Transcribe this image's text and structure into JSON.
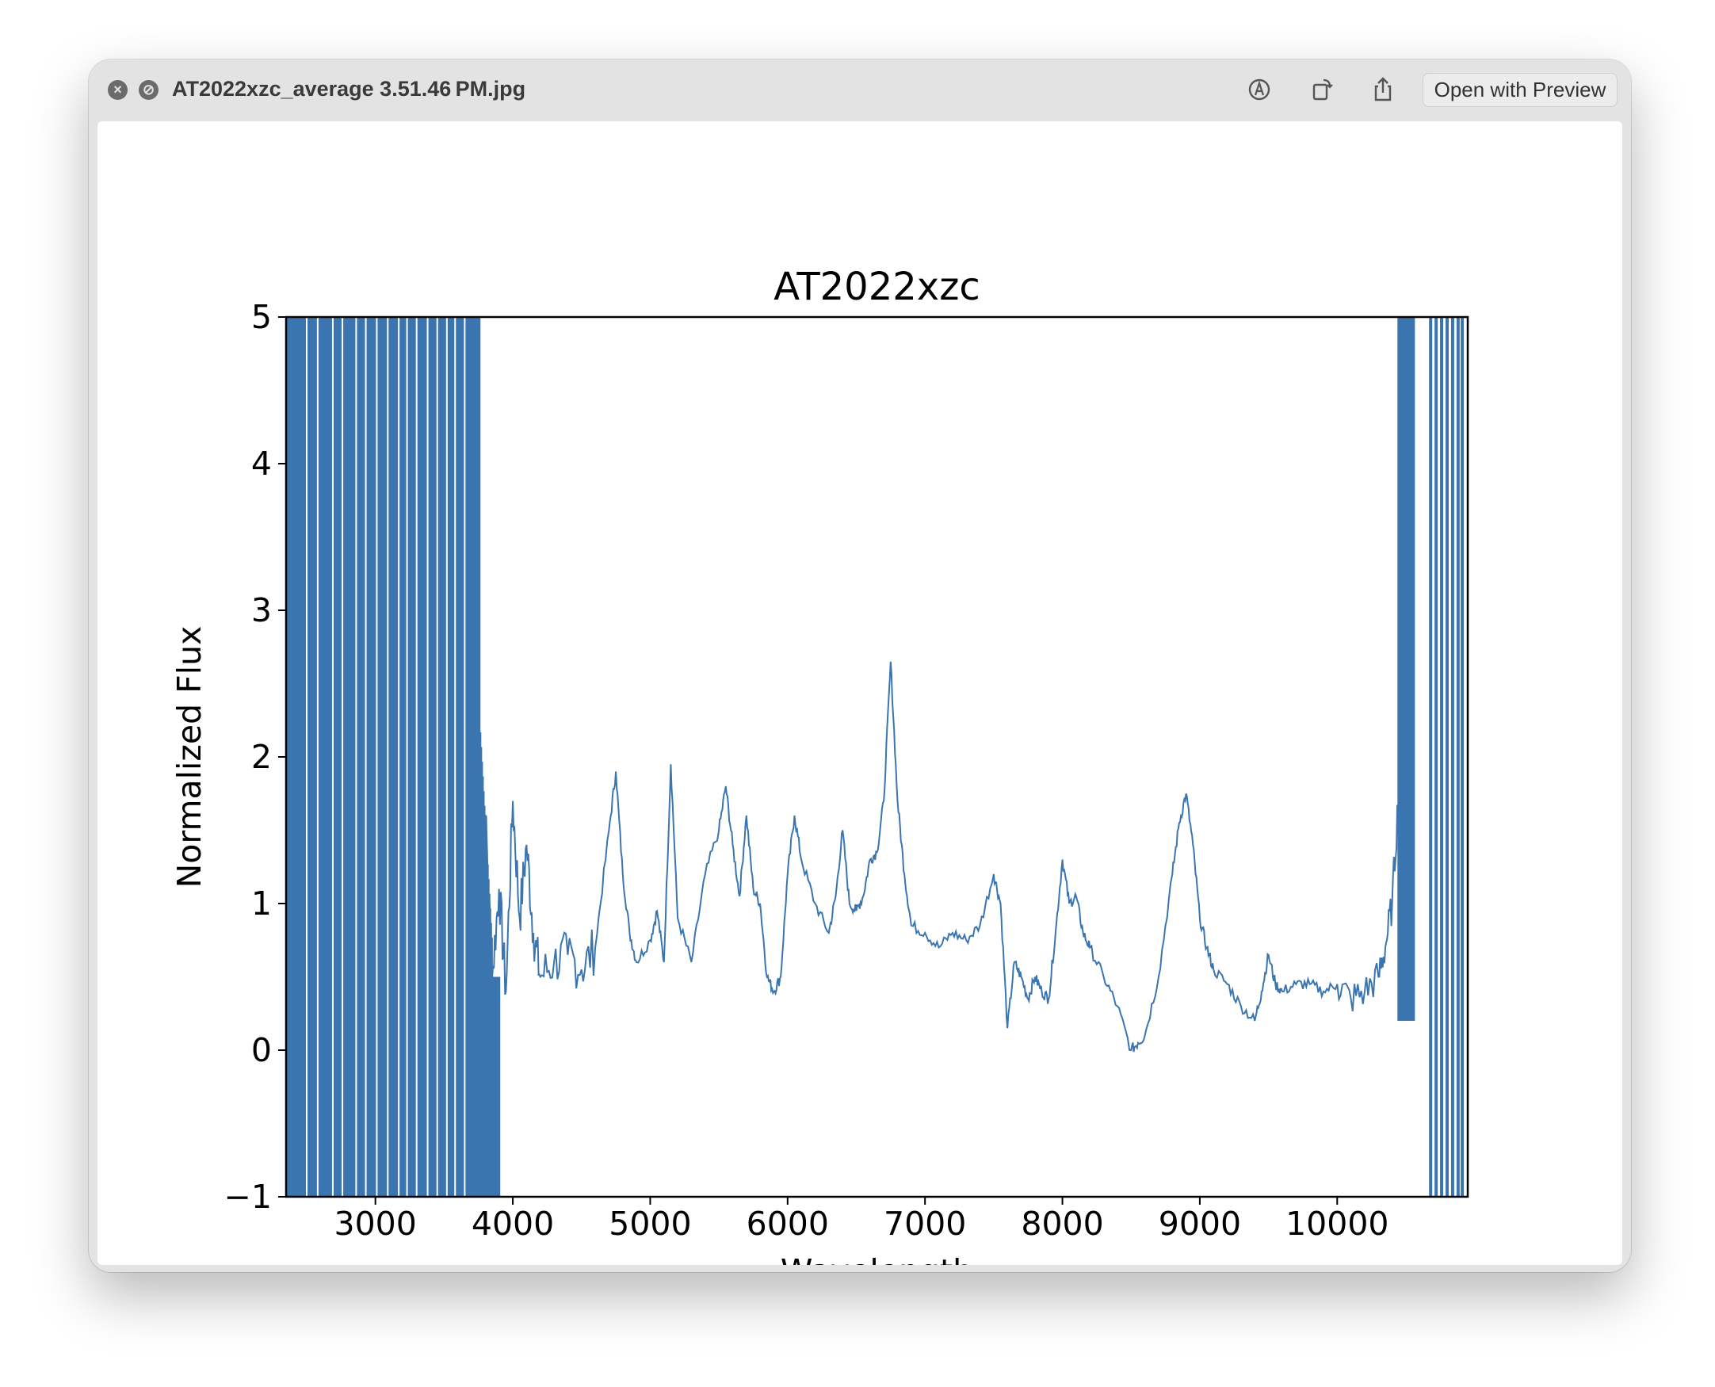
{
  "window": {
    "title": "AT2022xzc_average 3.51.46 PM.jpg",
    "close_icon": "close-icon",
    "fullscreen_icon": "slash-circle-icon",
    "toolbar": {
      "markup_icon": "markup-pen-icon",
      "rotate_icon": "rotate-icon",
      "share_icon": "share-icon",
      "open_with_label": "Open with Preview"
    },
    "live_text_icon": "live-text-icon"
  },
  "chart_data": {
    "type": "line",
    "title": "AT2022xzc",
    "xlabel": "Wavelength",
    "ylabel": "Normalized Flux",
    "xlim": [
      2350,
      10950
    ],
    "ylim": [
      -1,
      5
    ],
    "xticks": [
      3000,
      4000,
      5000,
      6000,
      7000,
      8000,
      9000,
      10000
    ],
    "yticks": [
      -1,
      0,
      1,
      2,
      3,
      4,
      5
    ],
    "xtick_labels": [
      "3000",
      "4000",
      "5000",
      "6000",
      "7000",
      "8000",
      "9000",
      "10000"
    ],
    "ytick_labels": [
      "−1",
      "0",
      "1",
      "2",
      "3",
      "4",
      "5"
    ],
    "series_color": "#3a75b0",
    "noisy_region_blue": {
      "x_range": [
        2350,
        3900
      ],
      "note_values": "flux oscillates beyond axis limits"
    },
    "noisy_region_red": {
      "x_range": [
        10450,
        10950
      ]
    },
    "series": [
      {
        "x": [
          3750,
          3800,
          3850,
          3900,
          3950,
          4000,
          4050,
          4100,
          4150,
          4200,
          4300,
          4400,
          4500,
          4600,
          4700,
          4750,
          4800,
          4850,
          4900,
          5000,
          5050,
          5100,
          5150,
          5200,
          5300,
          5400,
          5500,
          5550,
          5600,
          5650,
          5700,
          5750,
          5800,
          5850,
          5900,
          5950,
          6000,
          6050,
          6100,
          6200,
          6300,
          6350,
          6400,
          6450,
          6500,
          6550,
          6600,
          6650,
          6700,
          6750,
          6800,
          6850,
          6900,
          7000,
          7100,
          7200,
          7300,
          7400,
          7500,
          7550,
          7600,
          7650,
          7700,
          7750,
          7800,
          7850,
          7900,
          7950,
          8000,
          8050,
          8100,
          8150,
          8200,
          8300,
          8400,
          8500,
          8550,
          8600,
          8700,
          8800,
          8850,
          8900,
          8950,
          9000,
          9050,
          9100,
          9200,
          9300,
          9400,
          9450,
          9500,
          9550,
          9600,
          9700,
          9800,
          9900,
          10000,
          10100,
          10200,
          10300,
          10350,
          10400,
          10450
        ],
        "y": [
          0.3,
          1.6,
          0.5,
          1.1,
          0.4,
          1.7,
          0.9,
          1.4,
          0.8,
          0.5,
          0.6,
          0.65,
          0.55,
          0.7,
          1.5,
          1.9,
          1.2,
          0.8,
          0.6,
          0.75,
          0.95,
          0.6,
          1.95,
          0.9,
          0.6,
          1.2,
          1.5,
          1.8,
          1.4,
          1.05,
          1.6,
          1.1,
          1.0,
          0.5,
          0.4,
          0.5,
          1.2,
          1.6,
          1.3,
          1.0,
          0.8,
          1.05,
          1.5,
          1.0,
          0.95,
          1.05,
          1.3,
          1.35,
          1.7,
          2.65,
          1.7,
          1.2,
          0.85,
          0.8,
          0.7,
          0.8,
          0.75,
          0.85,
          1.2,
          1.0,
          0.15,
          0.6,
          0.5,
          0.35,
          0.5,
          0.4,
          0.35,
          0.8,
          1.3,
          1.0,
          1.05,
          0.8,
          0.7,
          0.5,
          0.3,
          0.0,
          0.05,
          0.1,
          0.5,
          1.2,
          1.55,
          1.75,
          1.4,
          0.9,
          0.7,
          0.55,
          0.45,
          0.3,
          0.2,
          0.4,
          0.65,
          0.45,
          0.4,
          0.45,
          0.45,
          0.4,
          0.45,
          0.35,
          0.4,
          0.5,
          0.7,
          1.0,
          1.8
        ]
      }
    ],
    "grid": false,
    "legend": "none"
  }
}
